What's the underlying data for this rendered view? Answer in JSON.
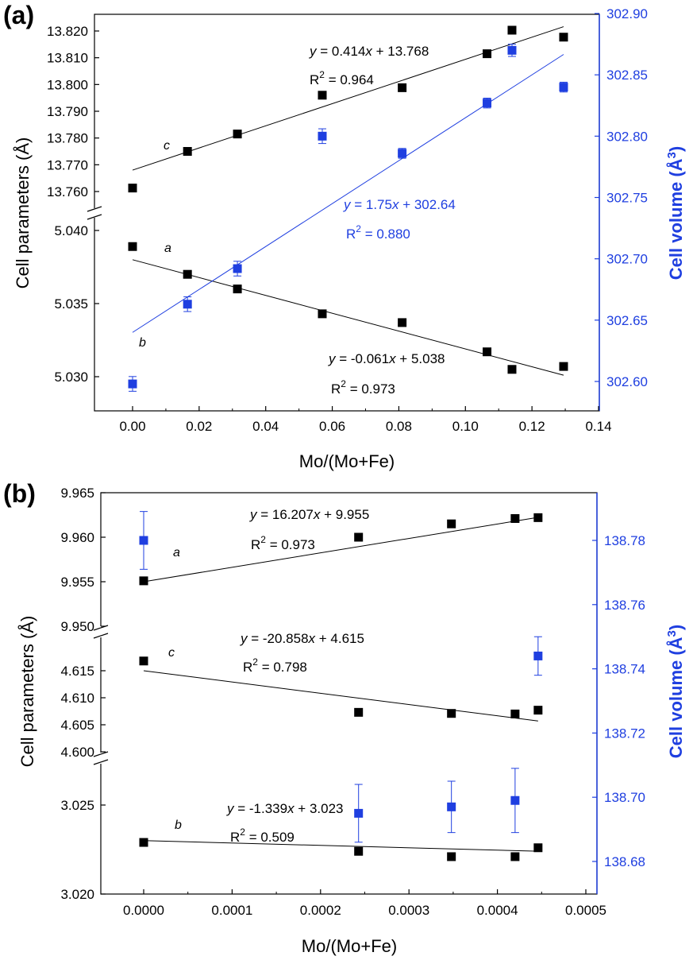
{
  "figure": {
    "panels": [
      {
        "label": "(a)",
        "xlabel": "Mo/(Mo+Fe)",
        "ylabel_left": "Cell parameters (Å)",
        "ylabel_right": "Cell volume (Å³)",
        "x_ticks": [
          "0.00",
          "0.02",
          "0.04",
          "0.06",
          "0.08",
          "0.10",
          "0.12",
          "0.14"
        ],
        "y_ticks_c": [
          "13.760",
          "13.770",
          "13.780",
          "13.790",
          "13.800",
          "13.810",
          "13.820"
        ],
        "y_ticks_a": [
          "5.030",
          "5.035",
          "5.040"
        ],
        "y_ticks_right": [
          "302.60",
          "302.65",
          "302.70",
          "302.75",
          "302.80",
          "302.85",
          "302.90"
        ],
        "labels": {
          "c": "c",
          "a": "a",
          "b": "b"
        },
        "fits": [
          {
            "eq": "y = 0.414x + 13.768",
            "r2": "R2 = 0.964"
          },
          {
            "eq": "y = 1.75x + 302.64",
            "r2": "R2 = 0.880"
          },
          {
            "eq": "y = -0.061x + 5.038",
            "r2": "R2 = 0.973"
          }
        ]
      },
      {
        "label": "(b)",
        "xlabel": "Mo/(Mo+Fe)",
        "ylabel_left": "Cell parameters (Å)",
        "ylabel_right": "Cell volume (Å³)",
        "x_ticks": [
          "0.0000",
          "0.0001",
          "0.0002",
          "0.0003",
          "0.0004",
          "0.0005"
        ],
        "y_ticks_a": [
          "9.950",
          "9.955",
          "9.960",
          "9.965"
        ],
        "y_ticks_c": [
          "4.600",
          "4.605",
          "4.610",
          "4.615"
        ],
        "y_ticks_b": [
          "3.020",
          "3.025"
        ],
        "y_ticks_right": [
          "138.68",
          "138.70",
          "138.72",
          "138.74",
          "138.76",
          "138.78"
        ],
        "labels": {
          "a": "a",
          "c": "c",
          "b": "b"
        },
        "fits": [
          {
            "eq": "y = 16.207x + 9.955",
            "r2": "R2 = 0.973"
          },
          {
            "eq": "y = -20.858x + 4.615",
            "r2": "R2 = 0.798"
          },
          {
            "eq": "y = -1.339x + 3.023",
            "r2": "R2 = 0.509"
          }
        ]
      }
    ]
  },
  "chart_data": [
    {
      "type": "scatter",
      "title": "(a)",
      "xlabel": "Mo/(Mo+Fe)",
      "ylabel": "Cell parameters (Å)",
      "y2label": "Cell volume (Å³)",
      "xlim": [
        -0.01,
        0.14
      ],
      "ylim_c": [
        13.755,
        13.823
      ],
      "ylim_a": [
        5.0275,
        5.0405
      ],
      "y2lim": [
        302.58,
        302.9
      ],
      "colors": {
        "params": "#000000",
        "volume": "#1f3fe0"
      },
      "series": [
        {
          "name": "c",
          "axis": "left",
          "x": [
            0.0,
            0.0165,
            0.0315,
            0.057,
            0.081,
            0.1065,
            0.114,
            0.1295
          ],
          "y": [
            13.7613,
            13.775,
            13.7815,
            13.796,
            13.7988,
            13.8115,
            13.8203,
            13.8177
          ],
          "fit": {
            "slope": 0.414,
            "intercept": 13.768
          }
        },
        {
          "name": "a",
          "axis": "left",
          "x": [
            0.0,
            0.0165,
            0.0315,
            0.057,
            0.081,
            0.1065,
            0.114,
            0.1295
          ],
          "y": [
            5.0389,
            5.037,
            5.036,
            5.0343,
            5.0337,
            5.0317,
            5.0305,
            5.0307
          ],
          "fit": {
            "slope": -0.061,
            "intercept": 5.038
          }
        },
        {
          "name": "b",
          "axis": "right",
          "x": [
            0.0,
            0.0165,
            0.0315,
            0.057,
            0.081,
            0.1065,
            0.114,
            0.1295
          ],
          "y": [
            302.598,
            302.663,
            302.692,
            302.8,
            302.786,
            302.827,
            302.87,
            302.84
          ],
          "err": [
            0.006,
            0.006,
            0.006,
            0.006,
            0.004,
            0.004,
            0.005,
            0.004
          ],
          "fit": {
            "slope": 1.75,
            "intercept": 302.64
          }
        }
      ]
    },
    {
      "type": "scatter",
      "title": "(b)",
      "xlabel": "Mo/(Mo+Fe)",
      "ylabel": "Cell parameters (Å)",
      "y2label": "Cell volume (Å³)",
      "xlim": [
        -5e-05,
        0.0005
      ],
      "ylim_a": [
        9.9495,
        9.965
      ],
      "ylim_c": [
        4.5995,
        4.6185
      ],
      "ylim_b": [
        3.02,
        3.0268
      ],
      "y2lim": [
        138.67,
        138.8
      ],
      "colors": {
        "params": "#000000",
        "volume": "#1f3fe0"
      },
      "series": [
        {
          "name": "a",
          "axis": "left",
          "x": [
            0.0,
            0.000243,
            0.000348,
            0.00042,
            0.000446
          ],
          "y": [
            9.9551,
            9.96,
            9.9615,
            9.9621,
            9.9622
          ],
          "fit": {
            "slope": 16.207,
            "intercept": 9.955
          }
        },
        {
          "name": "c",
          "axis": "left",
          "x": [
            0.0,
            0.000243,
            0.000348,
            0.00042,
            0.000446
          ],
          "y": [
            4.6168,
            4.6073,
            4.6071,
            4.607,
            4.6077
          ],
          "fit": {
            "slope": -20.858,
            "intercept": 4.615
          }
        },
        {
          "name": "b",
          "axis": "left",
          "x": [
            0.0,
            0.000243,
            0.000348,
            0.00042,
            0.000446
          ],
          "y": [
            3.0229,
            3.0224,
            3.0221,
            3.0221,
            3.0226
          ],
          "fit": {
            "slope": -1.339,
            "intercept": 3.023
          }
        },
        {
          "name": "Cell volume",
          "axis": "right",
          "x": [
            0.0,
            0.000243,
            0.000348,
            0.00042,
            0.000446
          ],
          "y": [
            138.78,
            138.695,
            138.697,
            138.699,
            138.744
          ],
          "err": [
            0.009,
            0.009,
            0.008,
            0.01,
            0.006
          ]
        }
      ]
    }
  ]
}
